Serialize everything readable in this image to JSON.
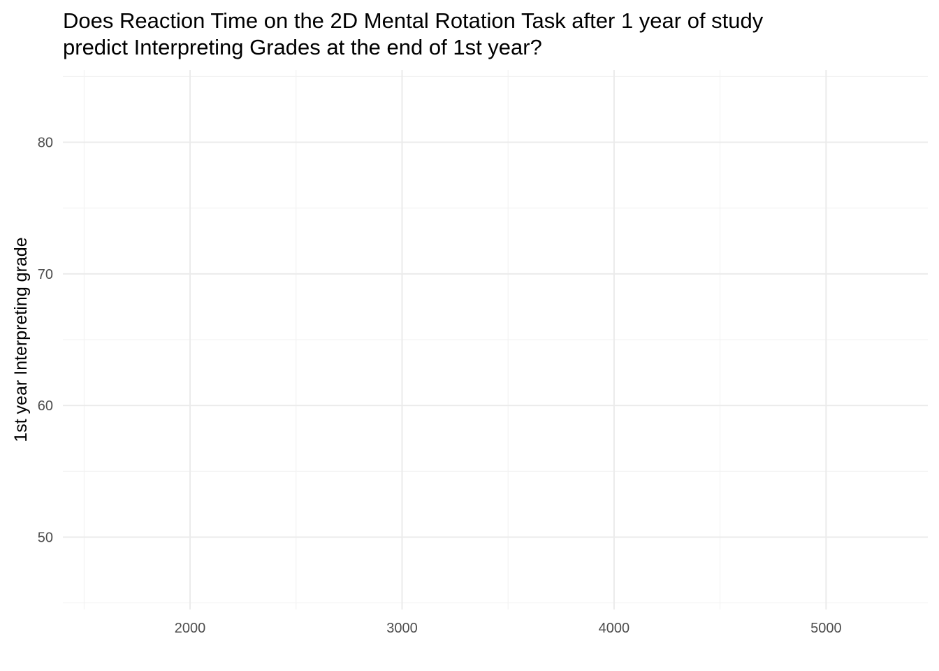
{
  "chart_data": {
    "type": "scatter",
    "title_lines": [
      "Does Reaction Time on the 2D Mental Rotation Task after 1 year of study",
      "predict Interpreting Grades at the end of 1st year?"
    ],
    "xlabel": "",
    "ylabel": "1st year Interpreting grade",
    "xlim": [
      1400,
      5480
    ],
    "ylim": [
      44.5,
      85.5
    ],
    "x_ticks": [
      2000,
      3000,
      4000,
      5000
    ],
    "x_minor_ticks": [
      1500,
      2500,
      3500,
      4500
    ],
    "y_ticks": [
      50,
      60,
      70,
      80
    ],
    "y_minor_ticks": [
      45,
      55,
      65,
      75,
      85
    ],
    "grid": true,
    "points": []
  }
}
